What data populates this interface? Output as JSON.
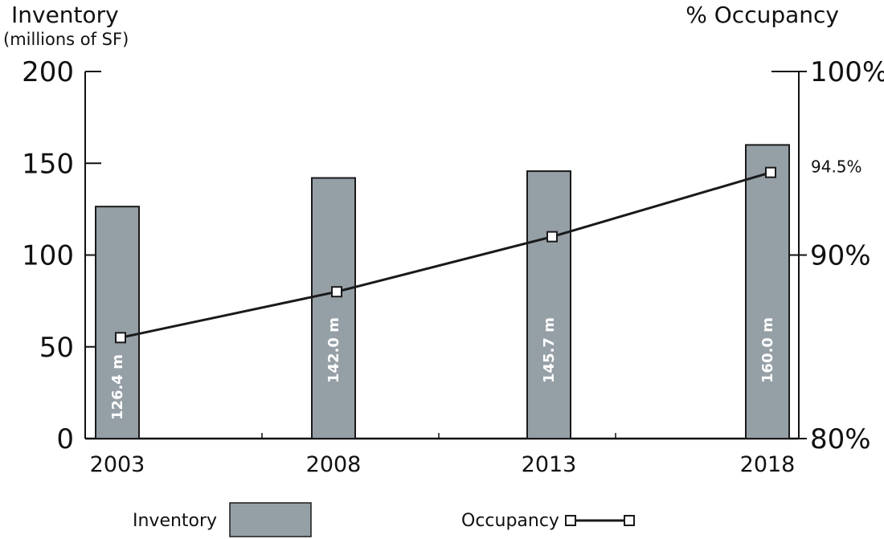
{
  "chart_data": {
    "type": "bar",
    "categories": [
      "2003",
      "2008",
      "2013",
      "2018"
    ],
    "series": [
      {
        "name": "Inventory",
        "axis": "left",
        "values": [
          126.4,
          142.0,
          145.7,
          160.0
        ],
        "data_labels": [
          "126.4 m",
          "142.0 m",
          "145.7 m",
          "160.0 m"
        ],
        "color": "#959fa6"
      },
      {
        "name": "Occupancy",
        "axis": "right",
        "type": "line",
        "values": [
          85.5,
          88.0,
          91.0,
          94.5
        ],
        "data_labels": [
          "",
          "",
          "",
          "94.5%"
        ],
        "color": "#1a1a1a"
      }
    ],
    "left_axis": {
      "label": "Inventory",
      "sublabel": "(millions of SF)",
      "ylim": [
        0,
        200
      ],
      "ticks": [
        0,
        50,
        100,
        150,
        200
      ],
      "tick_labels": [
        "0",
        "50",
        "100",
        "150",
        "200"
      ]
    },
    "right_axis": {
      "label": "% Occupancy",
      "ylim": [
        80,
        100
      ],
      "ticks": [
        80,
        90,
        100
      ],
      "tick_labels": [
        "80%",
        "90%",
        "100%"
      ]
    },
    "grid": false,
    "legend": {
      "placement": "bottom",
      "inventory_label": "Inventory",
      "occupancy_label": "Occupancy"
    }
  }
}
